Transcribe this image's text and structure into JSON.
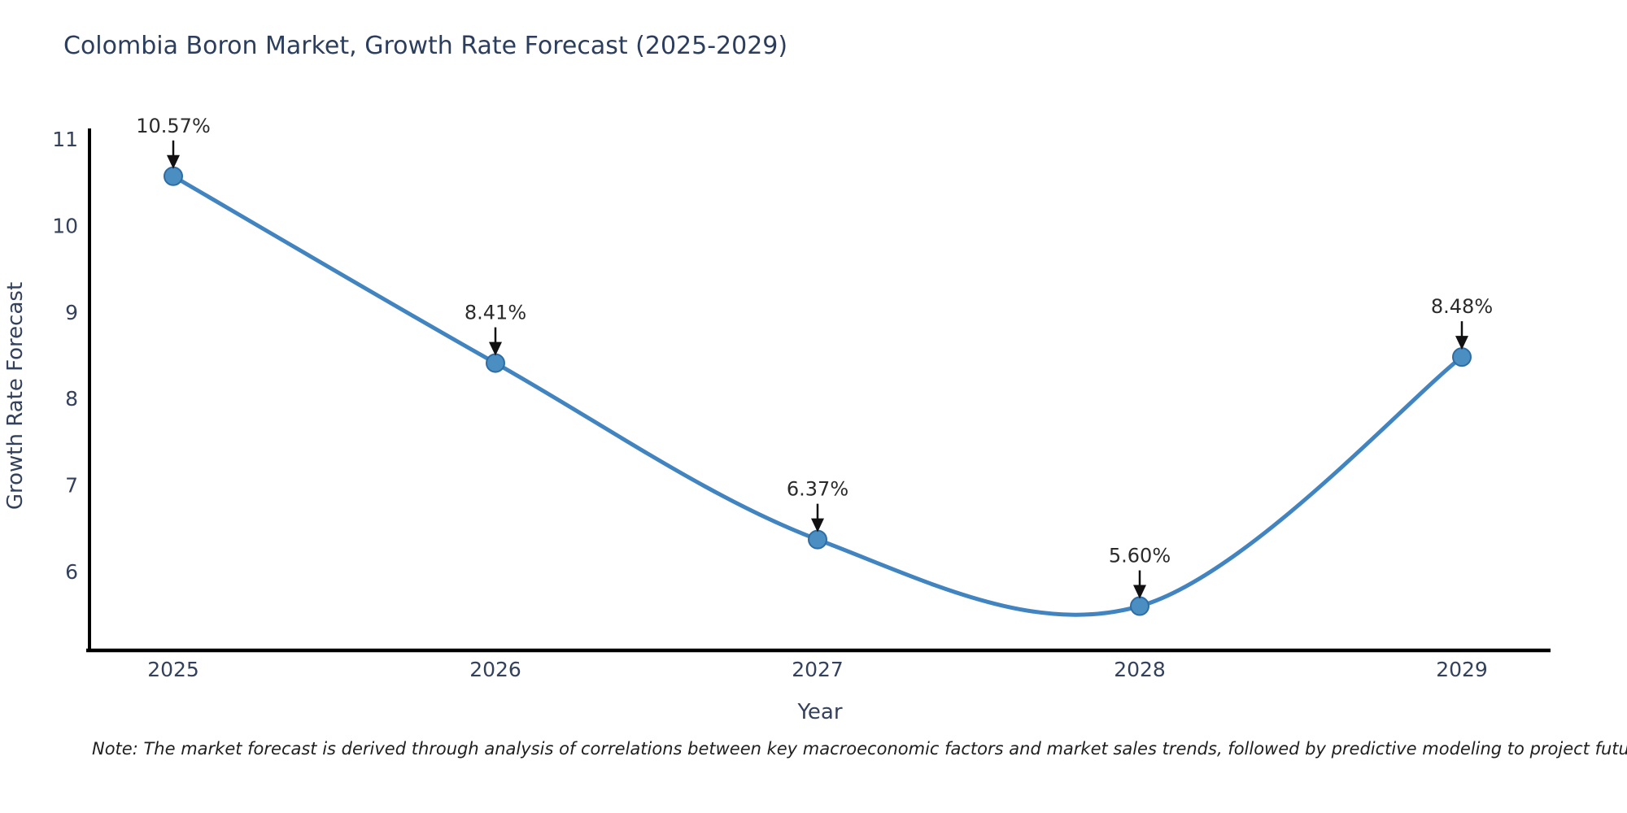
{
  "title": "Colombia Boron Market, Growth Rate Forecast (2025-2029)",
  "note": "Note: The market forecast is derived through analysis of correlations between key macroeconomic factors and market sales trends, followed by predictive modeling to project future sales",
  "chart_data": {
    "type": "line",
    "title": "Colombia Boron Market, Growth Rate Forecast (2025-2029)",
    "xlabel": "Year",
    "ylabel": "Growth Rate Forecast",
    "x": [
      2025,
      2026,
      2027,
      2028,
      2029
    ],
    "y": [
      10.57,
      8.41,
      6.37,
      5.6,
      8.48
    ],
    "point_labels": [
      "10.57%",
      "8.41%",
      "6.37%",
      "5.60%",
      "8.48%"
    ],
    "yticks": [
      6,
      7,
      8,
      9,
      10,
      11
    ],
    "xlim": [
      2024.73,
      2029.27
    ],
    "ylim": [
      5.05,
      11.15
    ],
    "grid": false,
    "legend": "none",
    "line_style": "smooth-spline",
    "annotation_style": "value-label-with-down-arrow",
    "colors": {
      "line": "#4184bf",
      "marker_fill": "#4a8ec2",
      "marker_edge": "#2e6da4",
      "annotation_text": "#2b2b2b",
      "arrow": "#111111",
      "axis_spine": "#000000",
      "tick_label": "#33415c",
      "title": "#2c3e5d"
    }
  }
}
